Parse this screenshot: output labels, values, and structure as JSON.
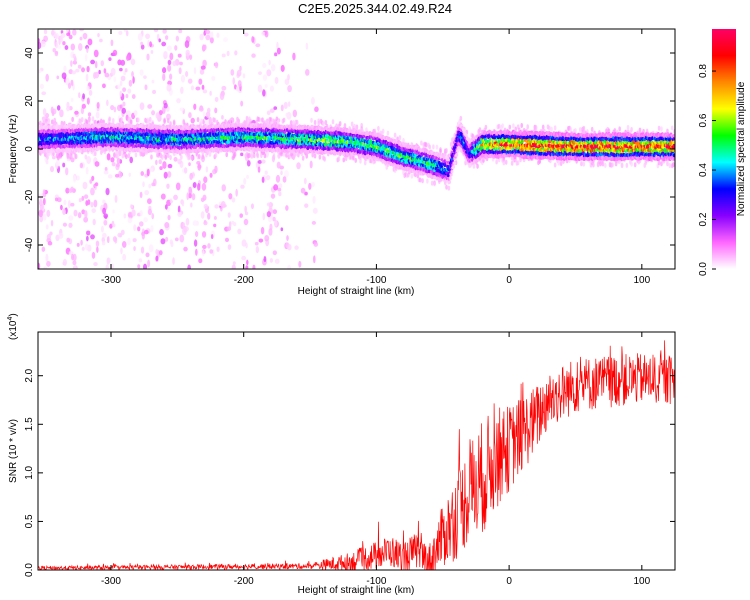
{
  "title": "C2E5.2025.344.02.49.R24",
  "chart_data": [
    {
      "type": "heatmap",
      "xlabel": "Height of straight line (km)",
      "ylabel": "Frequency (Hz)",
      "xlim": [
        -355,
        125
      ],
      "ylim": [
        -50,
        50
      ],
      "xticks": [
        -300,
        -200,
        -100,
        0,
        100
      ],
      "yticks": [
        -40,
        -20,
        0,
        20,
        40
      ],
      "colorbar": {
        "label": "Normalized spectral amplitude",
        "range": [
          0.0,
          0.97
        ],
        "ticks": [
          "0.0",
          "0.2",
          "0.4",
          "0.6",
          "0.8"
        ],
        "tick_values": [
          0.0,
          0.2,
          0.4,
          0.6,
          0.8
        ],
        "colors": [
          "#ffffff",
          "#ff66ff",
          "#8800ff",
          "#0000ff",
          "#00ffff",
          "#00ff00",
          "#ffff00",
          "#ff8800",
          "#ff0000",
          "#ff0066"
        ]
      },
      "ridge": {
        "x": [
          -355,
          -300,
          -250,
          -200,
          -150,
          -120,
          -100,
          -80,
          -60,
          -45,
          -38,
          -35,
          -30,
          -20,
          0,
          50,
          125
        ],
        "freq": [
          4,
          5,
          4,
          5,
          4,
          3,
          1,
          -3,
          -6,
          -9,
          6,
          4,
          -2,
          2,
          2,
          1,
          1
        ],
        "amplitude": [
          0.35,
          0.45,
          0.45,
          0.5,
          0.55,
          0.55,
          0.55,
          0.5,
          0.5,
          0.35,
          0.3,
          0.4,
          0.3,
          0.7,
          0.85,
          0.9,
          0.9
        ]
      }
    },
    {
      "type": "line",
      "xlabel": "Height of straight line (km)",
      "ylabel": "SNR (10 * v/v)",
      "scale_label": "(x10",
      "scale_exp": "4",
      "scale_close": ")",
      "xlim": [
        -355,
        125
      ],
      "ylim": [
        0,
        2.45
      ],
      "xticks": [
        -300,
        -200,
        -100,
        0,
        100
      ],
      "yticks": [
        "0.0",
        "0.5",
        "1.0",
        "1.5",
        "2.0"
      ],
      "ytick_values": [
        0.0,
        0.5,
        1.0,
        1.5,
        2.0
      ],
      "color": "#ff0000",
      "envelope": {
        "x": [
          -355,
          -150,
          -120,
          -100,
          -90,
          -80,
          -70,
          -60,
          -50,
          -40,
          -30,
          -20,
          -10,
          0,
          10,
          20,
          30,
          50,
          80,
          100,
          125
        ],
        "y": [
          0.02,
          0.04,
          0.08,
          0.15,
          0.2,
          0.12,
          0.2,
          0.08,
          0.35,
          0.55,
          0.8,
          0.95,
          1.15,
          1.25,
          1.4,
          1.55,
          1.75,
          1.9,
          1.95,
          1.97,
          1.95
        ]
      },
      "noise": {
        "x": [
          -355,
          -150,
          -100,
          -60,
          -40,
          -20,
          0,
          30,
          125
        ],
        "amp": [
          0.02,
          0.03,
          0.15,
          0.2,
          0.45,
          0.6,
          0.45,
          0.3,
          0.25
        ]
      }
    }
  ]
}
